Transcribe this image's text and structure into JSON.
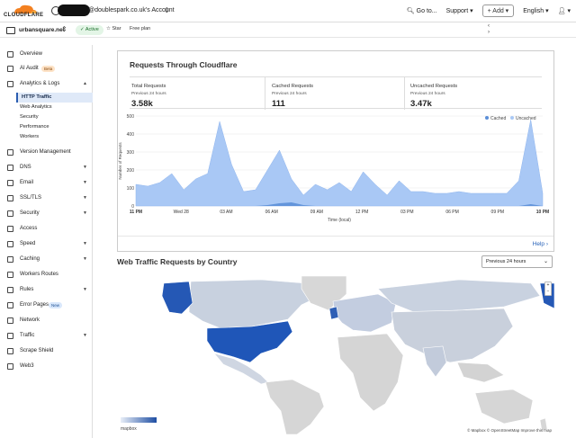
{
  "topbar": {
    "logo_text": "CLOUDFLARE",
    "account_name": "@doublespark.co.uk's Account",
    "goto_label": "Go to...",
    "support_label": "Support",
    "add_label": "+ Add",
    "language_label": "English"
  },
  "zone": {
    "name": "urbansquare.net",
    "status": "Active",
    "star_label": "Star",
    "plan_label": "Free plan"
  },
  "sidebar": {
    "items": [
      {
        "label": "Overview"
      },
      {
        "label": "AI Audit",
        "badge": "Beta"
      },
      {
        "label": "Analytics & Logs"
      },
      {
        "label": "Version Management"
      },
      {
        "label": "DNS"
      },
      {
        "label": "Email"
      },
      {
        "label": "SSL/TLS"
      },
      {
        "label": "Security"
      },
      {
        "label": "Access"
      },
      {
        "label": "Speed"
      },
      {
        "label": "Caching"
      },
      {
        "label": "Workers Routes"
      },
      {
        "label": "Rules"
      },
      {
        "label": "Error Pages",
        "badge": "New"
      },
      {
        "label": "Network"
      },
      {
        "label": "Traffic"
      },
      {
        "label": "Scrape Shield"
      },
      {
        "label": "Web3"
      }
    ],
    "analytics_sub": [
      {
        "label": "HTTP Traffic"
      },
      {
        "label": "Web Analytics"
      },
      {
        "label": "Security"
      },
      {
        "label": "Performance"
      },
      {
        "label": "Workers"
      }
    ]
  },
  "requests_panel": {
    "title": "Requests Through Cloudflare",
    "stats": [
      {
        "label": "Total Requests",
        "sub": "Previous 24 hours",
        "value": "3.58k"
      },
      {
        "label": "Cached Requests",
        "sub": "Previous 24 hours",
        "value": "111"
      },
      {
        "label": "Uncached Requests",
        "sub": "Previous 24 hours",
        "value": "3.47k"
      }
    ],
    "help_label": "Help"
  },
  "chart_data": {
    "type": "area",
    "ylabel": "Number of Requests",
    "xlabel": "Time (local)",
    "ylim": [
      0,
      500
    ],
    "yticks": [
      "500",
      "400",
      "300",
      "200",
      "100",
      "0"
    ],
    "xticks": [
      "11 PM",
      "Wed 28",
      "03 AM",
      "06 AM",
      "09 AM",
      "12 PM",
      "03 PM",
      "06 PM",
      "09 PM",
      "10 PM"
    ],
    "legend": [
      "Cached",
      "Uncached"
    ],
    "legend_position": "top-right",
    "colors": {
      "cached": "#5b8fd8",
      "uncached": "#a9c8f5"
    },
    "series": [
      {
        "name": "Cached",
        "values": [
          0,
          0,
          0,
          0,
          0,
          0,
          0,
          0,
          0,
          0,
          0,
          5,
          15,
          20,
          5,
          0,
          0,
          0,
          0,
          0,
          0,
          0,
          0,
          0,
          0,
          0,
          0,
          0,
          0,
          0,
          0,
          0,
          0,
          10,
          0
        ]
      },
      {
        "name": "Uncached",
        "values": [
          120,
          110,
          130,
          180,
          90,
          150,
          180,
          470,
          230,
          80,
          90,
          200,
          310,
          150,
          60,
          120,
          90,
          130,
          80,
          190,
          120,
          60,
          140,
          80,
          80,
          70,
          70,
          80,
          70,
          70,
          70,
          70,
          140,
          480,
          70
        ]
      }
    ]
  },
  "country_section": {
    "title": "Web Traffic Requests by Country",
    "range_select": "Previous 24 hours",
    "attribution": "© Mapbox © OpenStreetMap Improve this map",
    "mapbox_label": "mapbox"
  }
}
